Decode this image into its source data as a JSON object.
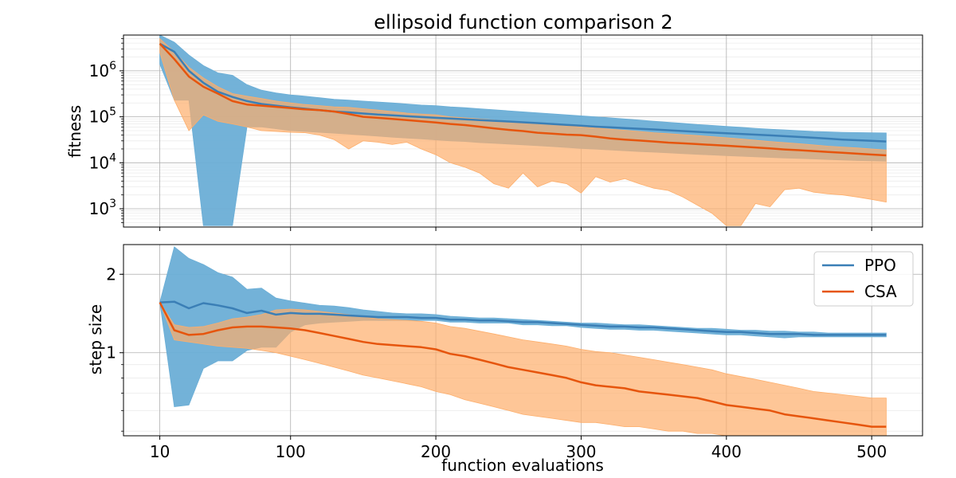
{
  "chart_data": [
    {
      "type": "line",
      "title": "ellipsoid function comparison 2",
      "xlabel": "",
      "ylabel": "fitness",
      "yscale": "log",
      "xlim": [
        -15,
        535
      ],
      "ylim": [
        400,
        6000000
      ],
      "xticks": [
        10,
        100,
        200,
        300,
        400,
        500
      ],
      "xtick_labels": [
        "",
        "",
        "",
        "",
        "",
        ""
      ],
      "yticks": [
        1000,
        10000,
        100000,
        1000000
      ],
      "ytick_labels": [
        {
          "base": "10",
          "exp": "3"
        },
        {
          "base": "10",
          "exp": "4"
        },
        {
          "base": "10",
          "exp": "5"
        },
        {
          "base": "10",
          "exp": "6"
        }
      ],
      "grid": true,
      "x": [
        10,
        20,
        30,
        40,
        50,
        60,
        70,
        80,
        90,
        100,
        110,
        120,
        130,
        140,
        150,
        160,
        170,
        180,
        190,
        200,
        210,
        220,
        230,
        240,
        250,
        260,
        270,
        280,
        290,
        300,
        310,
        320,
        330,
        340,
        350,
        360,
        370,
        380,
        390,
        400,
        410,
        420,
        430,
        440,
        450,
        460,
        470,
        480,
        490,
        500,
        510
      ],
      "series": [
        {
          "name": "PPO",
          "color": "#3b7fb6",
          "band_color": "#6baed6",
          "values": [
            3900000,
            2600000,
            1000000,
            550000,
            350000,
            270000,
            220000,
            190000,
            175000,
            160000,
            150000,
            140000,
            130000,
            125000,
            118000,
            112000,
            108000,
            103000,
            99000,
            95000,
            92000,
            88000,
            85000,
            82000,
            79000,
            76000,
            73000,
            70000,
            67000,
            64000,
            61000,
            59000,
            57000,
            55000,
            53000,
            51000,
            49000,
            47000,
            45500,
            44000,
            42500,
            41000,
            39500,
            38000,
            36500,
            35000,
            33500,
            32000,
            31000,
            30000,
            29000
          ],
          "lower": [
            1400000,
            230000,
            230000,
            430,
            430,
            430,
            60000,
            60000,
            55000,
            50000,
            48000,
            46000,
            44000,
            42000,
            40000,
            38000,
            36000,
            34500,
            33000,
            31500,
            30000,
            29000,
            27500,
            26500,
            25500,
            24500,
            23500,
            22500,
            21500,
            20500,
            19800,
            19000,
            18300,
            17600,
            17000,
            16400,
            15800,
            15300,
            14800,
            14300,
            13900,
            13500,
            13100,
            12700,
            12400,
            12100,
            11800,
            11500,
            11200,
            11000,
            10800
          ],
          "upper": [
            6000000,
            4200000,
            2200000,
            1300000,
            900000,
            800000,
            500000,
            380000,
            330000,
            300000,
            280000,
            260000,
            240000,
            230000,
            220000,
            210000,
            200000,
            190000,
            180000,
            175000,
            165000,
            158000,
            150000,
            142000,
            135000,
            128000,
            122000,
            116000,
            110000,
            105000,
            100000,
            95000,
            90000,
            85000,
            80000,
            76000,
            72000,
            68000,
            65000,
            62000,
            59000,
            56000,
            54000,
            52000,
            50000,
            48000,
            47000,
            46000,
            45500,
            45000,
            44500
          ]
        },
        {
          "name": "CSA",
          "color": "#e6550d",
          "band_color": "#fdae6b",
          "values": [
            3900000,
            1800000,
            750000,
            450000,
            320000,
            220000,
            185000,
            175000,
            165000,
            155000,
            145000,
            140000,
            130000,
            115000,
            100000,
            95000,
            90000,
            85000,
            80000,
            75000,
            70000,
            66000,
            61000,
            56000,
            52000,
            49000,
            45000,
            43000,
            41000,
            40000,
            37000,
            34000,
            32000,
            30500,
            29000,
            27500,
            26500,
            25500,
            24500,
            23500,
            22500,
            21500,
            20500,
            19500,
            18800,
            18000,
            17200,
            16500,
            15800,
            15100,
            14500
          ],
          "lower": [
            2500000,
            230000,
            50000,
            110000,
            80000,
            70000,
            60000,
            50000,
            48000,
            46000,
            45000,
            40000,
            32000,
            20000,
            30000,
            28000,
            25000,
            28000,
            20000,
            15000,
            10000,
            8000,
            6000,
            3500,
            2800,
            6000,
            3000,
            4000,
            3500,
            2200,
            5000,
            3800,
            4500,
            3500,
            2800,
            2500,
            1800,
            1200,
            800,
            430,
            430,
            1300,
            1100,
            2600,
            2800,
            2300,
            2100,
            2000,
            1800,
            1600,
            1400
          ],
          "upper": [
            5000000,
            2600000,
            1200000,
            700000,
            450000,
            320000,
            280000,
            250000,
            220000,
            200000,
            185000,
            175000,
            165000,
            160000,
            150000,
            140000,
            130000,
            120000,
            115000,
            110000,
            100000,
            95000,
            90000,
            85000,
            80000,
            76000,
            72000,
            68000,
            64000,
            60000,
            57000,
            54000,
            51000,
            48000,
            45000,
            43000,
            41000,
            39000,
            37000,
            35000,
            33000,
            31000,
            29000,
            27500,
            26000,
            24500,
            23000,
            22000,
            21000,
            20000,
            19000
          ]
        }
      ]
    },
    {
      "type": "line",
      "title": "",
      "xlabel": "function evaluations",
      "ylabel": "step size",
      "yscale": "log",
      "xlim": [
        -15,
        535
      ],
      "ylim": [
        0.48,
        2.6
      ],
      "xticks": [
        10,
        100,
        200,
        300,
        400,
        500
      ],
      "xtick_labels": [
        "10",
        "100",
        "200",
        "300",
        "400",
        "500"
      ],
      "yticks": [
        1,
        2
      ],
      "ytick_labels": [
        "1",
        "2"
      ],
      "grid": true,
      "legend": "top-right",
      "x": [
        10,
        20,
        30,
        40,
        50,
        60,
        70,
        80,
        90,
        100,
        110,
        120,
        130,
        140,
        150,
        160,
        170,
        180,
        190,
        200,
        210,
        220,
        230,
        240,
        250,
        260,
        270,
        280,
        290,
        300,
        310,
        320,
        330,
        340,
        350,
        360,
        370,
        380,
        390,
        400,
        410,
        420,
        430,
        440,
        450,
        460,
        470,
        480,
        490,
        500,
        510
      ],
      "series": [
        {
          "name": "PPO",
          "color": "#3b7fb6",
          "band_color": "#6baed6",
          "values": [
            1.56,
            1.57,
            1.48,
            1.55,
            1.52,
            1.48,
            1.42,
            1.45,
            1.4,
            1.42,
            1.41,
            1.41,
            1.4,
            1.39,
            1.38,
            1.37,
            1.37,
            1.37,
            1.36,
            1.36,
            1.34,
            1.34,
            1.33,
            1.33,
            1.32,
            1.31,
            1.31,
            1.3,
            1.29,
            1.28,
            1.27,
            1.26,
            1.26,
            1.25,
            1.25,
            1.24,
            1.23,
            1.22,
            1.21,
            1.2,
            1.2,
            1.19,
            1.18,
            1.18,
            1.18,
            1.17,
            1.17,
            1.17,
            1.17,
            1.17,
            1.17
          ],
          "lower": [
            1.56,
            0.62,
            0.63,
            0.87,
            0.93,
            0.93,
            1.02,
            1.05,
            1.05,
            1.2,
            1.28,
            1.3,
            1.31,
            1.32,
            1.33,
            1.33,
            1.33,
            1.33,
            1.33,
            1.33,
            1.31,
            1.31,
            1.3,
            1.3,
            1.3,
            1.28,
            1.28,
            1.27,
            1.27,
            1.25,
            1.24,
            1.23,
            1.23,
            1.22,
            1.22,
            1.21,
            1.2,
            1.19,
            1.18,
            1.17,
            1.17,
            1.16,
            1.15,
            1.14,
            1.15,
            1.15,
            1.15,
            1.15,
            1.15,
            1.15,
            1.15
          ],
          "upper": [
            1.56,
            2.55,
            2.3,
            2.18,
            2.03,
            1.95,
            1.75,
            1.77,
            1.62,
            1.58,
            1.55,
            1.52,
            1.51,
            1.49,
            1.46,
            1.44,
            1.42,
            1.41,
            1.41,
            1.4,
            1.38,
            1.37,
            1.36,
            1.36,
            1.35,
            1.34,
            1.33,
            1.32,
            1.31,
            1.3,
            1.3,
            1.29,
            1.28,
            1.28,
            1.27,
            1.26,
            1.25,
            1.24,
            1.24,
            1.23,
            1.22,
            1.22,
            1.21,
            1.21,
            1.2,
            1.2,
            1.19,
            1.19,
            1.19,
            1.19,
            1.19
          ]
        },
        {
          "name": "CSA",
          "color": "#e6550d",
          "band_color": "#fdae6b",
          "values": [
            1.56,
            1.22,
            1.17,
            1.18,
            1.22,
            1.25,
            1.26,
            1.26,
            1.25,
            1.24,
            1.22,
            1.19,
            1.16,
            1.13,
            1.1,
            1.08,
            1.07,
            1.06,
            1.05,
            1.03,
            0.99,
            0.97,
            0.94,
            0.91,
            0.88,
            0.86,
            0.84,
            0.82,
            0.8,
            0.77,
            0.75,
            0.74,
            0.73,
            0.71,
            0.7,
            0.69,
            0.68,
            0.67,
            0.65,
            0.63,
            0.62,
            0.61,
            0.6,
            0.58,
            0.57,
            0.56,
            0.55,
            0.54,
            0.53,
            0.52,
            0.52
          ],
          "lower": [
            1.56,
            1.12,
            1.1,
            1.08,
            1.06,
            1.05,
            1.04,
            1.02,
            1.0,
            0.97,
            0.94,
            0.91,
            0.88,
            0.85,
            0.82,
            0.8,
            0.78,
            0.76,
            0.74,
            0.71,
            0.69,
            0.66,
            0.64,
            0.62,
            0.6,
            0.58,
            0.57,
            0.56,
            0.55,
            0.54,
            0.54,
            0.53,
            0.52,
            0.52,
            0.51,
            0.5,
            0.5,
            0.49,
            0.49,
            0.48,
            0.48,
            0.48,
            0.48,
            0.48,
            0.48,
            0.48,
            0.48,
            0.48,
            0.48,
            0.48,
            0.48
          ],
          "upper": [
            1.56,
            1.28,
            1.25,
            1.26,
            1.3,
            1.35,
            1.37,
            1.4,
            1.46,
            1.47,
            1.46,
            1.44,
            1.42,
            1.4,
            1.37,
            1.35,
            1.34,
            1.33,
            1.32,
            1.3,
            1.26,
            1.24,
            1.21,
            1.18,
            1.15,
            1.12,
            1.1,
            1.08,
            1.06,
            1.03,
            1.01,
            1.0,
            0.98,
            0.96,
            0.94,
            0.92,
            0.9,
            0.88,
            0.86,
            0.83,
            0.81,
            0.79,
            0.77,
            0.75,
            0.73,
            0.71,
            0.7,
            0.69,
            0.68,
            0.67,
            0.67
          ]
        }
      ]
    }
  ]
}
